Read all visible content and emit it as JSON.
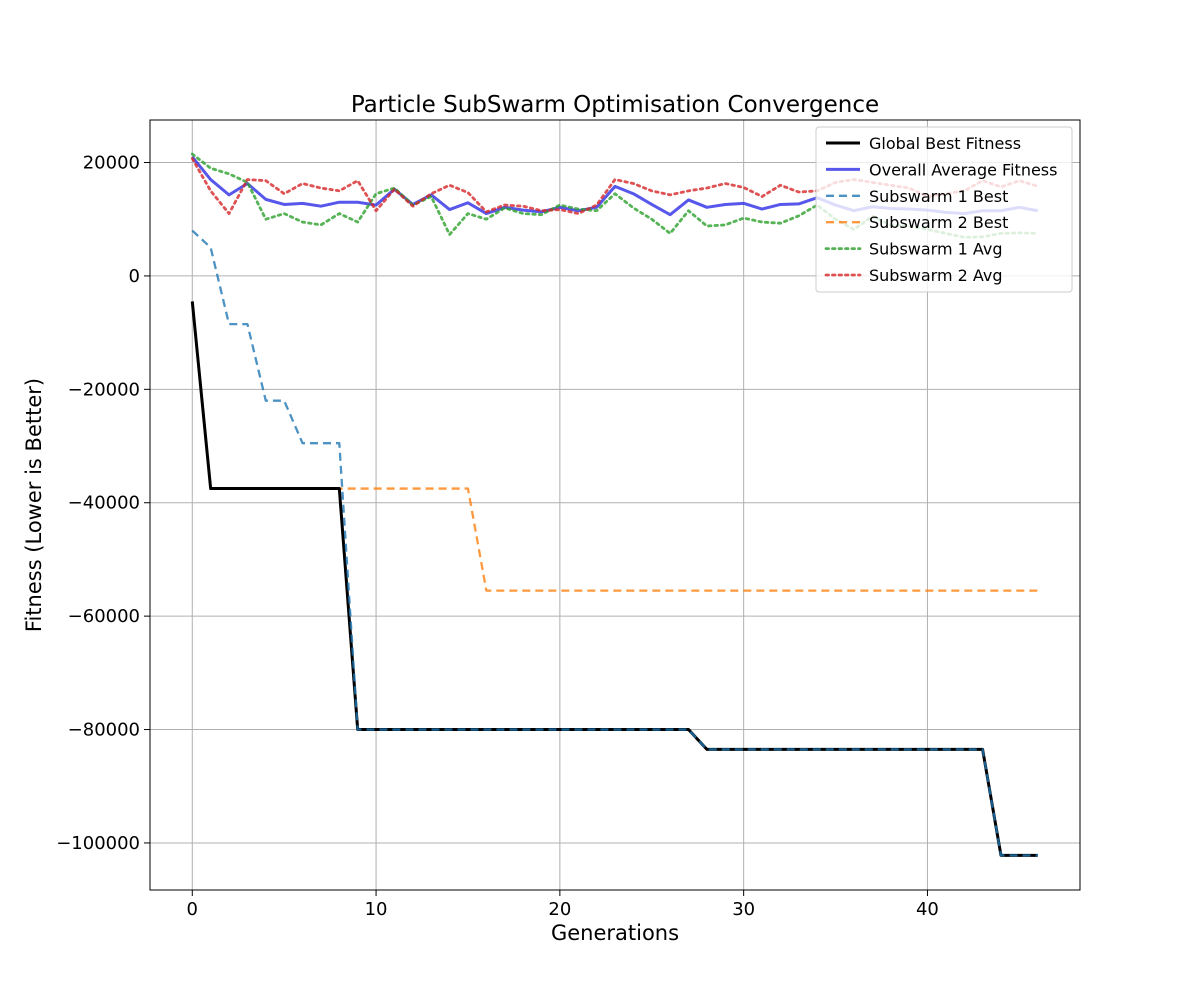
{
  "chart_data": {
    "type": "line",
    "title": "Particle SubSwarm Optimisation Convergence",
    "xlabel": "Generations",
    "ylabel": "Fitness (Lower is Better)",
    "xlim": [
      -2.3,
      48.3
    ],
    "ylim": [
      -108300,
      27500
    ],
    "x_ticks": [
      0,
      10,
      20,
      30,
      40
    ],
    "x_tick_labels": [
      "0",
      "10",
      "20",
      "30",
      "40"
    ],
    "y_ticks": [
      20000,
      0,
      -20000,
      -40000,
      -60000,
      -80000,
      -100000
    ],
    "y_tick_labels": [
      "20000",
      "0",
      "−20000",
      "−40000",
      "−60000",
      "−80000",
      "−100000"
    ],
    "grid": true,
    "legend_position": "top-right",
    "x": [
      0,
      1,
      2,
      3,
      4,
      5,
      6,
      7,
      8,
      9,
      10,
      11,
      12,
      13,
      14,
      15,
      16,
      17,
      18,
      19,
      20,
      21,
      22,
      23,
      24,
      25,
      26,
      27,
      28,
      29,
      30,
      31,
      32,
      33,
      34,
      35,
      36,
      37,
      38,
      39,
      40,
      41,
      42,
      43,
      44,
      45,
      46
    ],
    "series": [
      {
        "name": "Global Best Fitness",
        "color": "#000000",
        "style": "solid",
        "values": [
          -4500,
          -37500,
          -37500,
          -37500,
          -37500,
          -37500,
          -37500,
          -37500,
          -37500,
          -80000,
          -80000,
          -80000,
          -80000,
          -80000,
          -80000,
          -80000,
          -80000,
          -80000,
          -80000,
          -80000,
          -80000,
          -80000,
          -80000,
          -80000,
          -80000,
          -80000,
          -80000,
          -80000,
          -83500,
          -83500,
          -83500,
          -83500,
          -83500,
          -83500,
          -83500,
          -83500,
          -83500,
          -83500,
          -83500,
          -83500,
          -83500,
          -83500,
          -83500,
          -83500,
          -102200,
          -102200,
          -102200
        ]
      },
      {
        "name": "Overall Average Fitness",
        "color": "#3a3ae8",
        "style": "solid",
        "values": [
          21000,
          17000,
          14300,
          16300,
          13500,
          12600,
          12800,
          12300,
          13000,
          13000,
          12500,
          15300,
          12600,
          14300,
          11700,
          12900,
          11000,
          12100,
          11600,
          11300,
          12100,
          11500,
          12100,
          15800,
          14500,
          12600,
          10800,
          13400,
          12100,
          12600,
          12800,
          11800,
          12600,
          12700,
          13800,
          12500,
          11500,
          12200,
          11900,
          11800,
          11600,
          11200,
          11000,
          11500,
          11500,
          12100,
          11500
        ]
      },
      {
        "name": "Subswarm 1 Best",
        "color": "#1f77b4",
        "style": "dashed",
        "values": [
          8000,
          5000,
          -8500,
          -8500,
          -22000,
          -22000,
          -29500,
          -29500,
          -29500,
          -80000,
          -80000,
          -80000,
          -80000,
          -80000,
          -80000,
          -80000,
          -80000,
          -80000,
          -80000,
          -80000,
          -80000,
          -80000,
          -80000,
          -80000,
          -80000,
          -80000,
          -80000,
          -80000,
          -83500,
          -83500,
          -83500,
          -83500,
          -83500,
          -83500,
          -83500,
          -83500,
          -83500,
          -83500,
          -83500,
          -83500,
          -83500,
          -83500,
          -83500,
          -83500,
          -102200,
          -102200,
          -102200
        ]
      },
      {
        "name": "Subswarm 2 Best",
        "color": "#ff7f0e",
        "style": "dashed",
        "values": [
          -4500,
          -37500,
          -37500,
          -37500,
          -37500,
          -37500,
          -37500,
          -37500,
          -37500,
          -37500,
          -37500,
          -37500,
          -37500,
          -37500,
          -37500,
          -37500,
          -55500,
          -55500,
          -55500,
          -55500,
          -55500,
          -55500,
          -55500,
          -55500,
          -55500,
          -55500,
          -55500,
          -55500,
          -55500,
          -55500,
          -55500,
          -55500,
          -55500,
          -55500,
          -55500,
          -55500,
          -55500,
          -55500,
          -55500,
          -55500,
          -55500,
          -55500,
          -55500,
          -55500,
          -55500,
          -55500,
          -55500
        ]
      },
      {
        "name": "Subswarm 1 Avg",
        "color": "#2ca02c",
        "style": "dotted",
        "values": [
          21500,
          19000,
          18000,
          16500,
          10000,
          11000,
          9500,
          9000,
          11000,
          9500,
          14500,
          15500,
          12500,
          14000,
          7300,
          11000,
          10000,
          12000,
          11000,
          10800,
          12500,
          11800,
          11500,
          14500,
          12000,
          10000,
          7500,
          11500,
          8800,
          9000,
          10200,
          9500,
          9300,
          10600,
          12500,
          10000,
          8200,
          10500,
          9000,
          8800,
          8200,
          7500,
          6800,
          6900,
          7500,
          7600,
          7500
        ]
      },
      {
        "name": "Subswarm 2 Avg",
        "color": "#d62728",
        "style": "dotted",
        "values": [
          20700,
          15000,
          11000,
          17000,
          16800,
          14500,
          16300,
          15500,
          15000,
          16800,
          11500,
          15300,
          12300,
          14500,
          16000,
          14700,
          11300,
          12500,
          12300,
          11500,
          11700,
          11000,
          12500,
          17000,
          16300,
          15000,
          14300,
          15000,
          15500,
          16300,
          15600,
          14000,
          16000,
          14800,
          15000,
          16500,
          17000,
          16500,
          16000,
          15500,
          14000,
          14500,
          15000,
          16800,
          15700,
          16800,
          15800
        ]
      }
    ]
  }
}
